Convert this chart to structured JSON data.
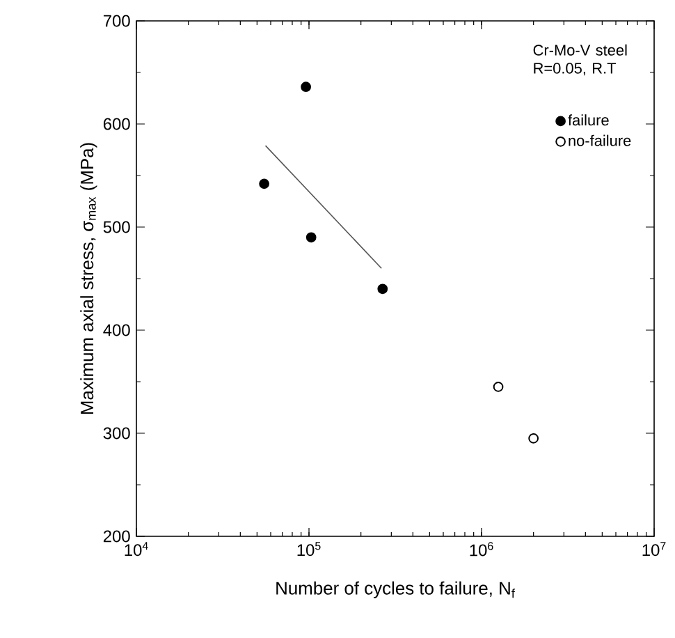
{
  "chart_data": {
    "type": "scatter",
    "xlabel": "Number of cycles to failure, N$_{f}$",
    "ylabel": "Maximum axial stress, σ$_{max}$ (MPa)",
    "legend_title": "Cr-Mo-V steel R=0.05, R.T",
    "log": "x",
    "xlim": [
      10000,
      10000000
    ],
    "ylim": [
      200,
      700
    ],
    "xticks": [
      {
        "value": 10000,
        "label": "10$^{4}$"
      },
      {
        "value": 100000,
        "label": "10$^{5}$"
      },
      {
        "value": 1000000,
        "label": "10$^{6}$"
      },
      {
        "value": 10000000,
        "label": "10$^{7}$"
      }
    ],
    "yticks": [
      200,
      300,
      400,
      500,
      600,
      700
    ],
    "grid": false,
    "legend": "top right",
    "marker": "circle",
    "series": [
      {
        "name": "failure",
        "color": "#000000",
        "x": [
          96000,
          55000,
          103000,
          267000
        ],
        "values": [
          636,
          542,
          490,
          440
        ]
      },
      {
        "name": "no-failure",
        "color": "#ffffff",
        "x": [
          1250000,
          2000000
        ],
        "values": [
          345,
          295
        ]
      },
      {
        "type": "line",
        "color": "#555555",
        "marker": "none",
        "x": [
          56000,
          263000
        ],
        "values": [
          579,
          460
        ]
      }
    ]
  }
}
